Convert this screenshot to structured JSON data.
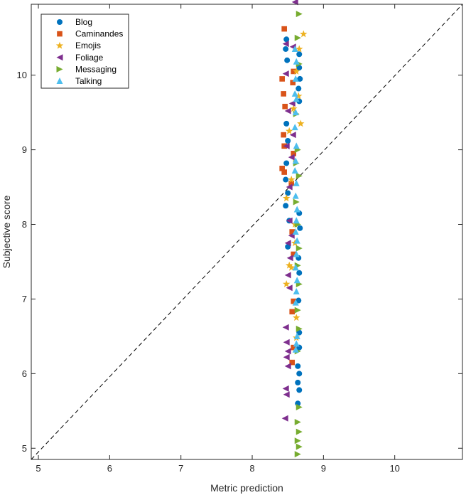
{
  "chart_data": {
    "type": "scatter",
    "xlabel": "Metric prediction",
    "ylabel": "Subjective score",
    "xlim": [
      4.9,
      10.95
    ],
    "ylim": [
      4.85,
      10.95
    ],
    "xticks": [
      5,
      6,
      7,
      8,
      9,
      10
    ],
    "yticks": [
      5,
      6,
      7,
      8,
      9,
      10
    ],
    "grid": false,
    "legend_position": "top-left",
    "reference_line": {
      "style": "dashed",
      "color": "#000000",
      "points": [
        [
          4.9,
          4.85
        ],
        [
          10.95,
          10.95
        ]
      ]
    },
    "series": [
      {
        "name": "Blog",
        "marker": "circle",
        "color": "#0072BD",
        "points": [
          [
            8.48,
            10.48
          ],
          [
            8.47,
            10.35
          ],
          [
            8.49,
            10.2
          ],
          [
            8.66,
            10.28
          ],
          [
            8.66,
            10.1
          ],
          [
            8.67,
            9.95
          ],
          [
            8.65,
            9.82
          ],
          [
            8.48,
            9.35
          ],
          [
            8.5,
            9.12
          ],
          [
            8.66,
            9.65
          ],
          [
            8.48,
            8.82
          ],
          [
            8.47,
            8.6
          ],
          [
            8.5,
            8.42
          ],
          [
            8.47,
            8.25
          ],
          [
            8.52,
            8.05
          ],
          [
            8.66,
            8.15
          ],
          [
            8.67,
            7.95
          ],
          [
            8.5,
            7.7
          ],
          [
            8.65,
            7.55
          ],
          [
            8.66,
            7.35
          ],
          [
            8.65,
            6.98
          ],
          [
            8.66,
            6.35
          ],
          [
            8.64,
            6.1
          ],
          [
            8.66,
            6.0
          ],
          [
            8.64,
            5.88
          ],
          [
            8.66,
            5.78
          ],
          [
            8.64,
            5.6
          ],
          [
            8.66,
            6.55
          ]
        ]
      },
      {
        "name": "Caminandes",
        "marker": "square",
        "color": "#D95319",
        "points": [
          [
            8.45,
            10.62
          ],
          [
            8.42,
            9.95
          ],
          [
            8.44,
            9.75
          ],
          [
            8.46,
            9.58
          ],
          [
            8.44,
            9.2
          ],
          [
            8.45,
            9.05
          ],
          [
            8.42,
            8.75
          ],
          [
            8.45,
            8.7
          ],
          [
            8.58,
            8.95
          ],
          [
            8.56,
            7.9
          ],
          [
            8.58,
            7.6
          ],
          [
            8.58,
            6.97
          ],
          [
            8.56,
            6.83
          ],
          [
            8.58,
            6.35
          ],
          [
            8.56,
            6.15
          ],
          [
            8.55,
            8.55
          ],
          [
            8.57,
            9.9
          ],
          [
            8.58,
            10.05
          ]
        ]
      },
      {
        "name": "Emojis",
        "marker": "star",
        "color": "#EDB120",
        "points": [
          [
            8.72,
            10.55
          ],
          [
            8.66,
            10.35
          ],
          [
            8.62,
            10.05
          ],
          [
            8.65,
            9.72
          ],
          [
            8.52,
            9.25
          ],
          [
            8.55,
            8.6
          ],
          [
            8.48,
            8.35
          ],
          [
            8.6,
            8.0
          ],
          [
            8.52,
            7.45
          ],
          [
            8.55,
            7.42
          ],
          [
            8.48,
            7.2
          ],
          [
            8.62,
            6.75
          ],
          [
            8.58,
            9.55
          ],
          [
            8.68,
            9.35
          ],
          [
            8.6,
            7.75
          ],
          [
            8.62,
            6.48
          ]
        ]
      },
      {
        "name": "Foliage",
        "marker": "triangle-left",
        "color": "#7E2F8E",
        "points": [
          [
            8.6,
            10.98
          ],
          [
            8.47,
            10.42
          ],
          [
            8.57,
            10.38
          ],
          [
            8.47,
            10.02
          ],
          [
            8.5,
            9.52
          ],
          [
            8.48,
            9.05
          ],
          [
            8.57,
            9.2
          ],
          [
            8.52,
            8.5
          ],
          [
            8.55,
            7.85
          ],
          [
            8.5,
            7.75
          ],
          [
            8.53,
            7.55
          ],
          [
            8.5,
            7.32
          ],
          [
            8.52,
            7.15
          ],
          [
            8.47,
            6.62
          ],
          [
            8.48,
            6.42
          ],
          [
            8.5,
            6.3
          ],
          [
            8.48,
            6.22
          ],
          [
            8.5,
            6.1
          ],
          [
            8.47,
            5.8
          ],
          [
            8.48,
            5.72
          ],
          [
            8.46,
            5.4
          ],
          [
            8.52,
            8.05
          ],
          [
            8.55,
            8.9
          ],
          [
            8.56,
            9.62
          ]
        ]
      },
      {
        "name": "Messaging",
        "marker": "triangle-right",
        "color": "#77AC30",
        "points": [
          [
            8.66,
            10.82
          ],
          [
            8.64,
            10.5
          ],
          [
            8.66,
            10.15
          ],
          [
            8.62,
            9.48
          ],
          [
            8.64,
            9.0
          ],
          [
            8.66,
            8.65
          ],
          [
            8.62,
            8.3
          ],
          [
            8.64,
            8.0
          ],
          [
            8.66,
            7.68
          ],
          [
            8.64,
            7.45
          ],
          [
            8.66,
            7.2
          ],
          [
            8.64,
            6.85
          ],
          [
            8.66,
            6.6
          ],
          [
            8.64,
            6.3
          ],
          [
            8.66,
            5.55
          ],
          [
            8.64,
            5.35
          ],
          [
            8.66,
            5.22
          ],
          [
            8.64,
            5.1
          ],
          [
            8.66,
            5.02
          ],
          [
            8.64,
            4.92
          ],
          [
            8.62,
            8.82
          ]
        ]
      },
      {
        "name": "Talking",
        "marker": "triangle-up",
        "color": "#4DBEEE",
        "points": [
          [
            8.6,
            10.35
          ],
          [
            8.62,
            10.18
          ],
          [
            8.61,
            9.95
          ],
          [
            8.6,
            9.75
          ],
          [
            8.62,
            9.68
          ],
          [
            8.61,
            9.5
          ],
          [
            8.6,
            9.3
          ],
          [
            8.62,
            9.05
          ],
          [
            8.61,
            8.85
          ],
          [
            8.6,
            8.72
          ],
          [
            8.62,
            8.55
          ],
          [
            8.61,
            8.38
          ],
          [
            8.63,
            8.2
          ],
          [
            8.62,
            8.05
          ],
          [
            8.61,
            7.9
          ],
          [
            8.63,
            7.78
          ],
          [
            8.62,
            7.6
          ],
          [
            8.61,
            7.42
          ],
          [
            8.63,
            7.25
          ],
          [
            8.62,
            7.1
          ],
          [
            8.61,
            6.95
          ],
          [
            8.63,
            6.5
          ],
          [
            8.62,
            6.4
          ],
          [
            8.61,
            6.32
          ]
        ]
      }
    ]
  }
}
